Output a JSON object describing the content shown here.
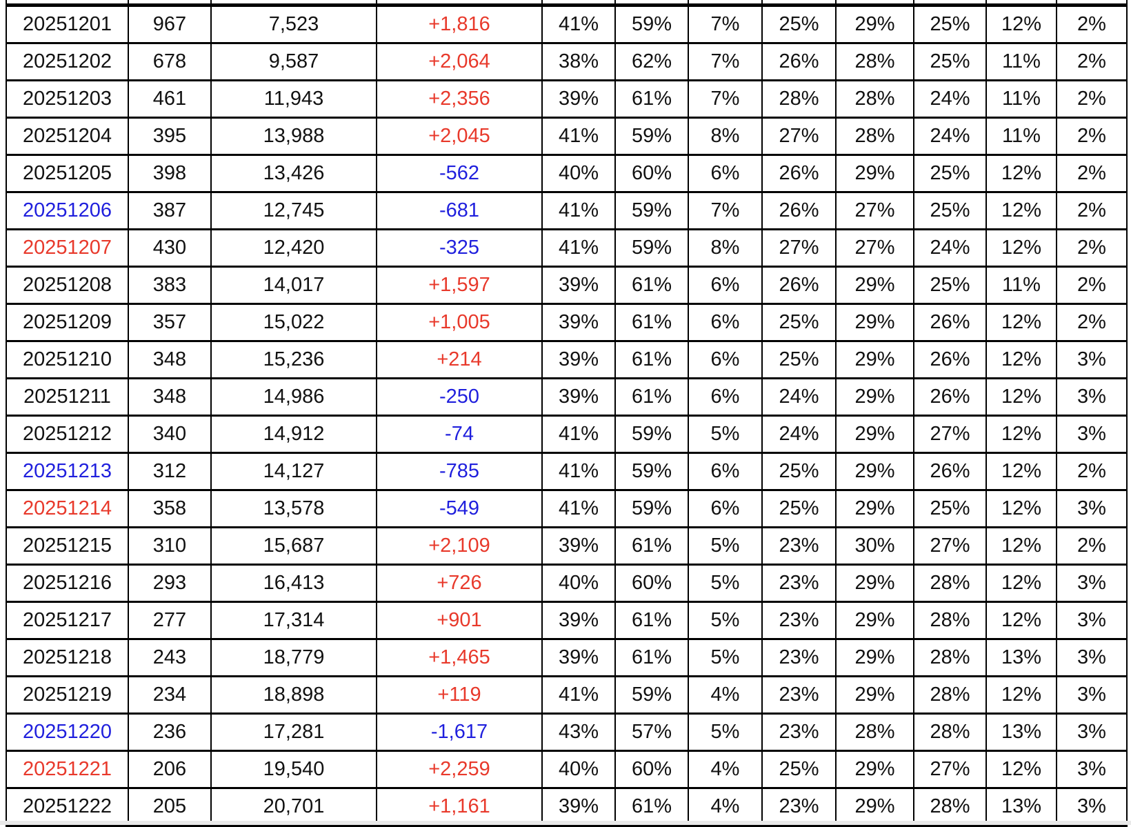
{
  "colors": {
    "black": "#111111",
    "red": "#e8392b",
    "blue": "#1f1fdd"
  },
  "table": {
    "rows": [
      {
        "date": "20251201",
        "date_color": "black",
        "count": "967",
        "total": "7,523",
        "delta": "+1,816",
        "delta_color": "red",
        "pcts": [
          "41%",
          "59%",
          "7%",
          "25%",
          "29%",
          "25%",
          "12%",
          "2%"
        ]
      },
      {
        "date": "20251202",
        "date_color": "black",
        "count": "678",
        "total": "9,587",
        "delta": "+2,064",
        "delta_color": "red",
        "pcts": [
          "38%",
          "62%",
          "7%",
          "26%",
          "28%",
          "25%",
          "11%",
          "2%"
        ]
      },
      {
        "date": "20251203",
        "date_color": "black",
        "count": "461",
        "total": "11,943",
        "delta": "+2,356",
        "delta_color": "red",
        "pcts": [
          "39%",
          "61%",
          "7%",
          "28%",
          "28%",
          "24%",
          "11%",
          "2%"
        ]
      },
      {
        "date": "20251204",
        "date_color": "black",
        "count": "395",
        "total": "13,988",
        "delta": "+2,045",
        "delta_color": "red",
        "pcts": [
          "41%",
          "59%",
          "8%",
          "27%",
          "28%",
          "24%",
          "11%",
          "2%"
        ]
      },
      {
        "date": "20251205",
        "date_color": "black",
        "count": "398",
        "total": "13,426",
        "delta": "-562",
        "delta_color": "blue",
        "pcts": [
          "40%",
          "60%",
          "6%",
          "26%",
          "29%",
          "25%",
          "12%",
          "2%"
        ]
      },
      {
        "date": "20251206",
        "date_color": "blue",
        "count": "387",
        "total": "12,745",
        "delta": "-681",
        "delta_color": "blue",
        "pcts": [
          "41%",
          "59%",
          "7%",
          "26%",
          "27%",
          "25%",
          "12%",
          "2%"
        ]
      },
      {
        "date": "20251207",
        "date_color": "red",
        "count": "430",
        "total": "12,420",
        "delta": "-325",
        "delta_color": "blue",
        "pcts": [
          "41%",
          "59%",
          "8%",
          "27%",
          "27%",
          "24%",
          "12%",
          "2%"
        ]
      },
      {
        "date": "20251208",
        "date_color": "black",
        "count": "383",
        "total": "14,017",
        "delta": "+1,597",
        "delta_color": "red",
        "pcts": [
          "39%",
          "61%",
          "6%",
          "26%",
          "29%",
          "25%",
          "11%",
          "2%"
        ]
      },
      {
        "date": "20251209",
        "date_color": "black",
        "count": "357",
        "total": "15,022",
        "delta": "+1,005",
        "delta_color": "red",
        "pcts": [
          "39%",
          "61%",
          "6%",
          "25%",
          "29%",
          "26%",
          "12%",
          "2%"
        ]
      },
      {
        "date": "20251210",
        "date_color": "black",
        "count": "348",
        "total": "15,236",
        "delta": "+214",
        "delta_color": "red",
        "pcts": [
          "39%",
          "61%",
          "6%",
          "25%",
          "29%",
          "26%",
          "12%",
          "3%"
        ]
      },
      {
        "date": "20251211",
        "date_color": "black",
        "count": "348",
        "total": "14,986",
        "delta": "-250",
        "delta_color": "blue",
        "pcts": [
          "39%",
          "61%",
          "6%",
          "24%",
          "29%",
          "26%",
          "12%",
          "3%"
        ]
      },
      {
        "date": "20251212",
        "date_color": "black",
        "count": "340",
        "total": "14,912",
        "delta": "-74",
        "delta_color": "blue",
        "pcts": [
          "41%",
          "59%",
          "5%",
          "24%",
          "29%",
          "27%",
          "12%",
          "3%"
        ]
      },
      {
        "date": "20251213",
        "date_color": "blue",
        "count": "312",
        "total": "14,127",
        "delta": "-785",
        "delta_color": "blue",
        "pcts": [
          "41%",
          "59%",
          "6%",
          "25%",
          "29%",
          "26%",
          "12%",
          "2%"
        ]
      },
      {
        "date": "20251214",
        "date_color": "red",
        "count": "358",
        "total": "13,578",
        "delta": "-549",
        "delta_color": "blue",
        "pcts": [
          "41%",
          "59%",
          "6%",
          "25%",
          "29%",
          "25%",
          "12%",
          "3%"
        ]
      },
      {
        "date": "20251215",
        "date_color": "black",
        "count": "310",
        "total": "15,687",
        "delta": "+2,109",
        "delta_color": "red",
        "pcts": [
          "39%",
          "61%",
          "5%",
          "23%",
          "30%",
          "27%",
          "12%",
          "2%"
        ]
      },
      {
        "date": "20251216",
        "date_color": "black",
        "count": "293",
        "total": "16,413",
        "delta": "+726",
        "delta_color": "red",
        "pcts": [
          "40%",
          "60%",
          "5%",
          "23%",
          "29%",
          "28%",
          "12%",
          "3%"
        ]
      },
      {
        "date": "20251217",
        "date_color": "black",
        "count": "277",
        "total": "17,314",
        "delta": "+901",
        "delta_color": "red",
        "pcts": [
          "39%",
          "61%",
          "5%",
          "23%",
          "29%",
          "28%",
          "12%",
          "3%"
        ]
      },
      {
        "date": "20251218",
        "date_color": "black",
        "count": "243",
        "total": "18,779",
        "delta": "+1,465",
        "delta_color": "red",
        "pcts": [
          "39%",
          "61%",
          "5%",
          "23%",
          "29%",
          "28%",
          "13%",
          "3%"
        ]
      },
      {
        "date": "20251219",
        "date_color": "black",
        "count": "234",
        "total": "18,898",
        "delta": "+119",
        "delta_color": "red",
        "pcts": [
          "41%",
          "59%",
          "4%",
          "23%",
          "29%",
          "28%",
          "12%",
          "3%"
        ]
      },
      {
        "date": "20251220",
        "date_color": "blue",
        "count": "236",
        "total": "17,281",
        "delta": "-1,617",
        "delta_color": "blue",
        "pcts": [
          "43%",
          "57%",
          "5%",
          "23%",
          "28%",
          "28%",
          "13%",
          "3%"
        ]
      },
      {
        "date": "20251221",
        "date_color": "red",
        "count": "206",
        "total": "19,540",
        "delta": "+2,259",
        "delta_color": "red",
        "pcts": [
          "40%",
          "60%",
          "4%",
          "25%",
          "29%",
          "27%",
          "12%",
          "3%"
        ]
      },
      {
        "date": "20251222",
        "date_color": "black",
        "count": "205",
        "total": "20,701",
        "delta": "+1,161",
        "delta_color": "red",
        "pcts": [
          "39%",
          "61%",
          "4%",
          "23%",
          "29%",
          "28%",
          "13%",
          "3%"
        ]
      }
    ]
  }
}
